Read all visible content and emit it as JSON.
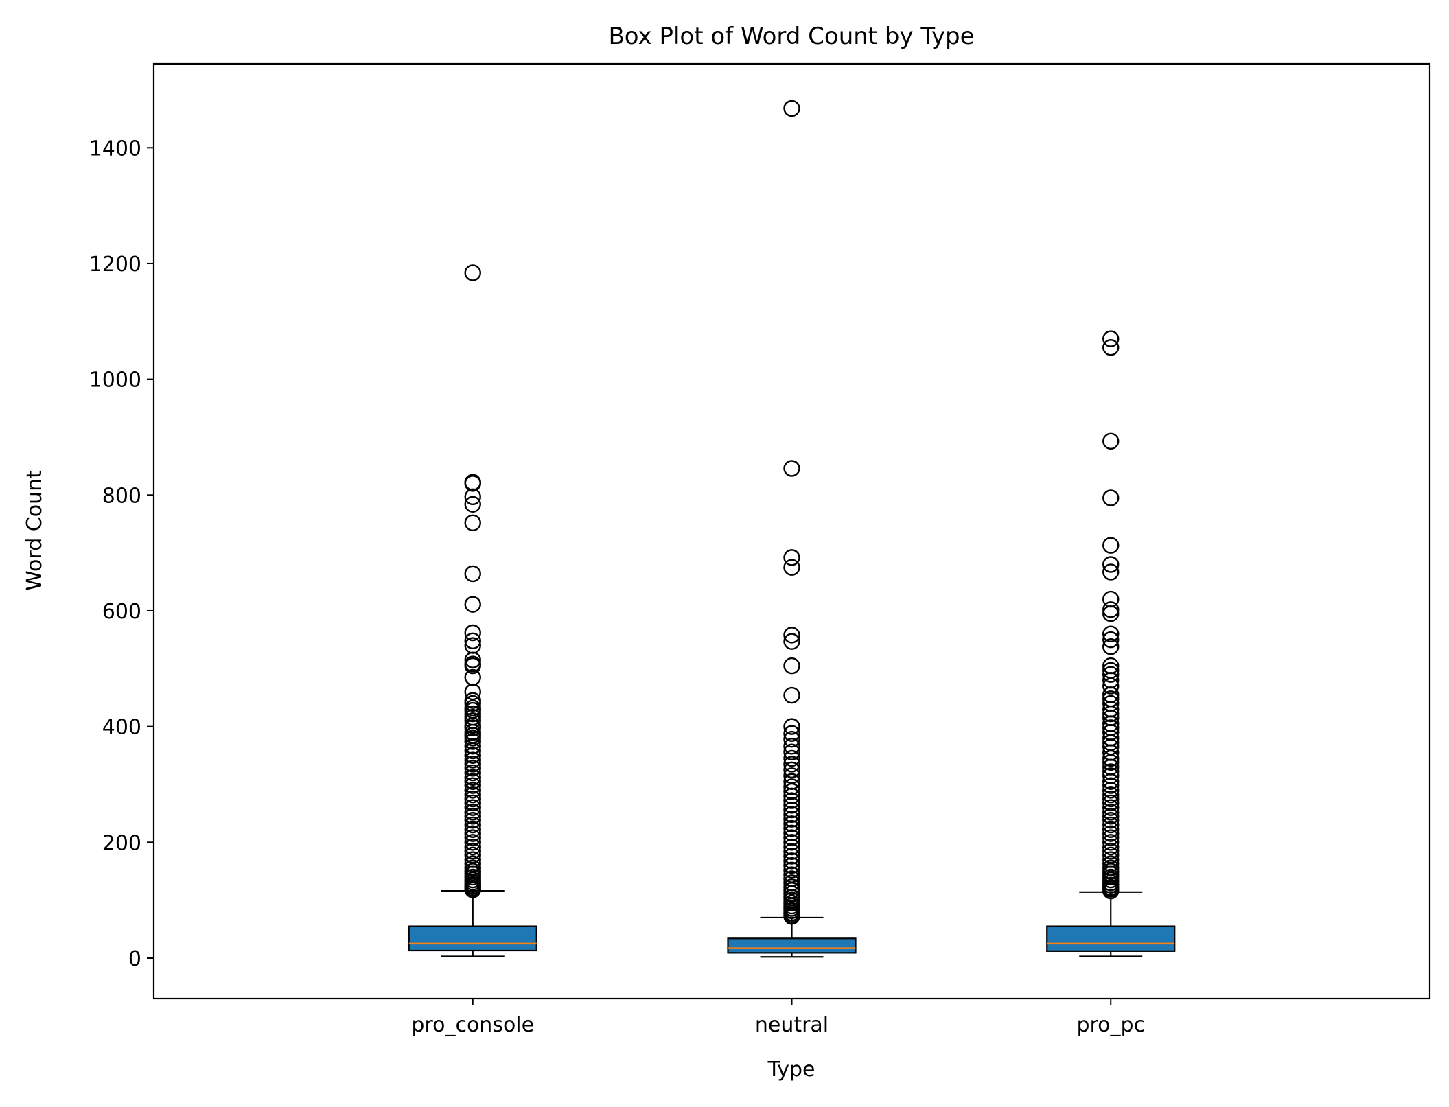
{
  "chart_data": {
    "type": "box",
    "title": "Box Plot of Word Count by Type",
    "xlabel": "Type",
    "ylabel": "Word Count",
    "ylim": [
      -70,
      1545
    ],
    "yticks": [
      0,
      200,
      400,
      600,
      800,
      1000,
      1200,
      1400
    ],
    "grid": false,
    "colors": {
      "box_fill": "#1f77b4",
      "median": "#ff7f0e",
      "edge": "#000000"
    },
    "categories": [
      "pro_console",
      "neutral",
      "pro_pc"
    ],
    "boxes": [
      {
        "category": "pro_console",
        "whisker_low": 3,
        "q1": 13,
        "median": 25,
        "q3": 55,
        "whisker_high": 116,
        "outliers": [
          1184,
          822,
          820,
          797,
          784,
          752,
          664,
          611,
          562,
          548,
          540,
          515,
          508,
          505,
          485,
          460,
          445,
          440,
          432,
          428,
          422,
          416,
          410,
          402,
          398,
          390,
          385,
          380,
          374,
          366,
          358,
          350,
          342,
          335,
          328,
          320,
          312,
          305,
          298,
          290,
          282,
          275,
          268,
          260,
          252,
          245,
          238,
          230,
          222,
          215,
          208,
          200,
          192,
          185,
          178,
          170,
          163,
          156,
          150,
          145,
          140,
          135,
          131,
          127,
          124,
          121,
          118
        ]
      },
      {
        "category": "neutral",
        "whisker_low": 2,
        "q1": 9,
        "median": 17,
        "q3": 34,
        "whisker_high": 70,
        "outliers": [
          1468,
          846,
          692,
          675,
          558,
          547,
          505,
          454,
          400,
          388,
          378,
          366,
          356,
          345,
          335,
          325,
          315,
          305,
          296,
          288,
          280,
          272,
          264,
          256,
          248,
          240,
          232,
          224,
          216,
          208,
          200,
          192,
          184,
          176,
          168,
          160,
          152,
          144,
          137,
          130,
          123,
          117,
          111,
          105,
          100,
          95,
          90,
          86,
          82,
          78,
          75,
          72
        ]
      },
      {
        "category": "pro_pc",
        "whisker_low": 3,
        "q1": 12,
        "median": 25,
        "q3": 55,
        "whisker_high": 114,
        "outliers": [
          1070,
          1055,
          893,
          795,
          713,
          680,
          667,
          620,
          602,
          595,
          560,
          550,
          538,
          505,
          497,
          490,
          480,
          470,
          455,
          448,
          440,
          430,
          422,
          415,
          405,
          398,
          390,
          380,
          372,
          365,
          355,
          345,
          338,
          330,
          322,
          315,
          305,
          298,
          290,
          282,
          275,
          268,
          260,
          252,
          245,
          238,
          230,
          222,
          215,
          208,
          200,
          192,
          185,
          178,
          170,
          163,
          156,
          150,
          145,
          140,
          135,
          130,
          126,
          122,
          119,
          116
        ]
      }
    ]
  }
}
